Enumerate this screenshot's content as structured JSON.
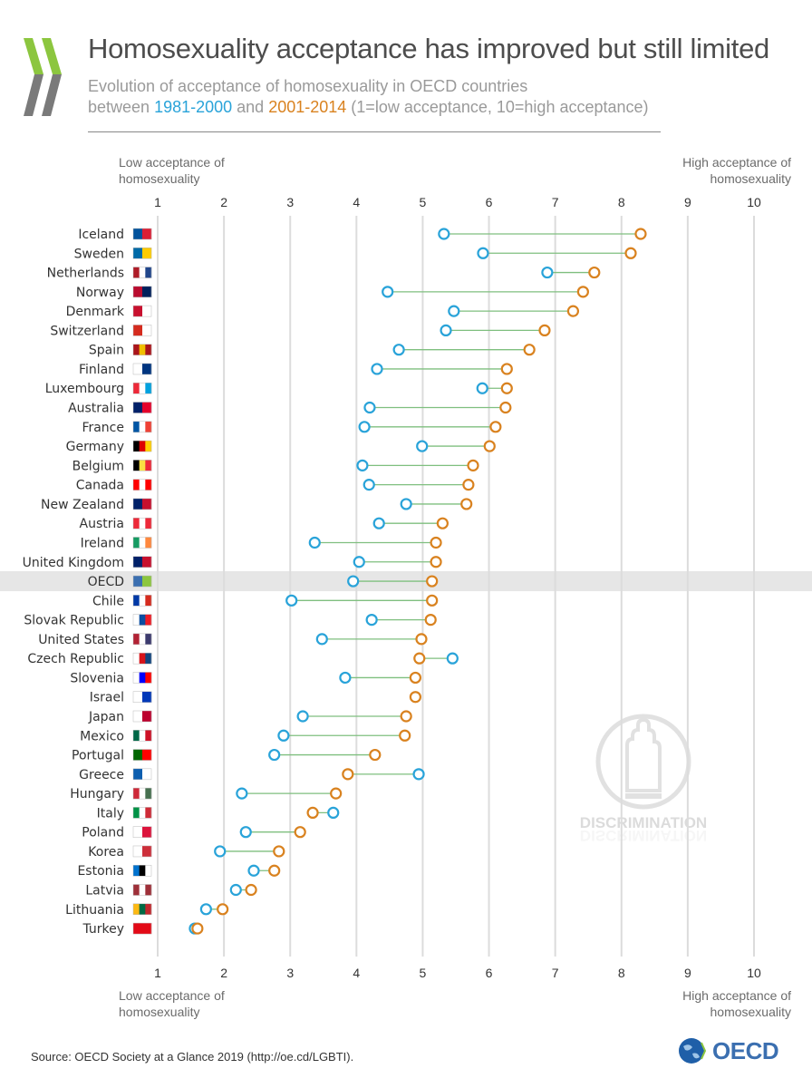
{
  "header": {
    "title": "Homosexuality acceptance has improved but still limited",
    "subtitle_line1": "Evolution of acceptance of homosexuality in OECD countries",
    "subtitle_between": "between ",
    "subtitle_period1": "1981-2000",
    "subtitle_and": " and ",
    "subtitle_period2": "2001-2014",
    "subtitle_note": " (1=low acceptance, 10=high acceptance)"
  },
  "axis_labels": {
    "low": "Low acceptance of homosexuality",
    "high": "High acceptance of homosexuality"
  },
  "watermark": "DISCRIMINATION",
  "footer": {
    "source": "Source: OECD Society at a Glance 2019 (http://oe.cd/LGBTI).",
    "logo_text": "OECD"
  },
  "colors": {
    "period1": "#29a3d9",
    "period2": "#d9821f",
    "connector": "#7fbf7f",
    "highlight": "#e6e6e6"
  },
  "chart_data": {
    "type": "dumbbell",
    "title": "Homosexuality acceptance has improved but still limited",
    "xlim": [
      1,
      10
    ],
    "xticks": [
      1,
      2,
      3,
      4,
      5,
      6,
      7,
      8,
      9,
      10
    ],
    "grid": true,
    "series_names": [
      "1981-2000",
      "2001-2014"
    ],
    "highlight": "OECD",
    "categories": [
      "Iceland",
      "Sweden",
      "Netherlands",
      "Norway",
      "Denmark",
      "Switzerland",
      "Spain",
      "Finland",
      "Luxembourg",
      "Australia",
      "France",
      "Germany",
      "Belgium",
      "Canada",
      "New Zealand",
      "Austria",
      "Ireland",
      "United Kingdom",
      "OECD",
      "Chile",
      "Slovak Republic",
      "United States",
      "Czech Republic",
      "Slovenia",
      "Israel",
      "Japan",
      "Mexico",
      "Portugal",
      "Greece",
      "Hungary",
      "Italy",
      "Poland",
      "Korea",
      "Estonia",
      "Latvia",
      "Lithuania",
      "Turkey"
    ],
    "series": [
      {
        "name": "1981-2000",
        "values": [
          5.32,
          5.91,
          6.88,
          4.47,
          5.47,
          5.35,
          4.64,
          4.31,
          5.9,
          4.2,
          4.12,
          4.99,
          4.09,
          4.19,
          4.75,
          4.34,
          3.37,
          4.04,
          3.95,
          3.02,
          4.23,
          3.48,
          5.45,
          3.83,
          null,
          3.19,
          2.9,
          2.76,
          4.94,
          2.27,
          3.65,
          2.33,
          1.94,
          2.45,
          2.18,
          1.73,
          1.56
        ]
      },
      {
        "name": "2001-2014",
        "values": [
          8.29,
          8.14,
          7.59,
          7.42,
          7.27,
          6.84,
          6.61,
          6.27,
          6.27,
          6.25,
          6.1,
          6.01,
          5.76,
          5.69,
          5.66,
          5.3,
          5.2,
          5.2,
          5.14,
          5.14,
          5.12,
          4.98,
          4.95,
          4.89,
          4.89,
          4.75,
          4.73,
          4.28,
          3.87,
          3.69,
          3.34,
          3.15,
          2.83,
          2.76,
          2.41,
          1.98,
          1.6
        ]
      }
    ],
    "flag_colors": [
      [
        "#02529c",
        "#dc1e35"
      ],
      [
        "#006aa7",
        "#fecc00"
      ],
      [
        "#ae1c28",
        "#ffffff",
        "#21468b"
      ],
      [
        "#ba0c2f",
        "#00205b"
      ],
      [
        "#c8102e",
        "#ffffff"
      ],
      [
        "#d52b1e",
        "#ffffff"
      ],
      [
        "#aa151b",
        "#f1bf00",
        "#aa151b"
      ],
      [
        "#ffffff",
        "#003580"
      ],
      [
        "#ed2939",
        "#ffffff",
        "#00a1de"
      ],
      [
        "#012169",
        "#e4002b"
      ],
      [
        "#0055a4",
        "#ffffff",
        "#ef4135"
      ],
      [
        "#000000",
        "#dd0000",
        "#ffce00"
      ],
      [
        "#000000",
        "#fae042",
        "#ed2939"
      ],
      [
        "#ff0000",
        "#ffffff",
        "#ff0000"
      ],
      [
        "#012169",
        "#c8102e"
      ],
      [
        "#ed2939",
        "#ffffff",
        "#ed2939"
      ],
      [
        "#169b62",
        "#ffffff",
        "#ff883e"
      ],
      [
        "#012169",
        "#c8102e"
      ],
      [
        "#3b6fb0",
        "#8cc63f"
      ],
      [
        "#0039a6",
        "#ffffff",
        "#d52b1e"
      ],
      [
        "#ffffff",
        "#0b4ea2",
        "#ee1c25"
      ],
      [
        "#b22234",
        "#ffffff",
        "#3c3b6e"
      ],
      [
        "#ffffff",
        "#d7141a",
        "#11457e"
      ],
      [
        "#ffffff",
        "#0000ff",
        "#ff0000"
      ],
      [
        "#ffffff",
        "#0038b8"
      ],
      [
        "#ffffff",
        "#bc002d"
      ],
      [
        "#006847",
        "#ffffff",
        "#ce1126"
      ],
      [
        "#006600",
        "#ff0000"
      ],
      [
        "#0d5eaf",
        "#ffffff"
      ],
      [
        "#ce2939",
        "#ffffff",
        "#477050"
      ],
      [
        "#009246",
        "#ffffff",
        "#ce2b37"
      ],
      [
        "#ffffff",
        "#dc143c"
      ],
      [
        "#ffffff",
        "#cd2e3a"
      ],
      [
        "#0072ce",
        "#000000",
        "#ffffff"
      ],
      [
        "#9e3039",
        "#ffffff",
        "#9e3039"
      ],
      [
        "#fdb913",
        "#006a44",
        "#c1272d"
      ],
      [
        "#e30a17",
        "#e30a17"
      ]
    ]
  }
}
